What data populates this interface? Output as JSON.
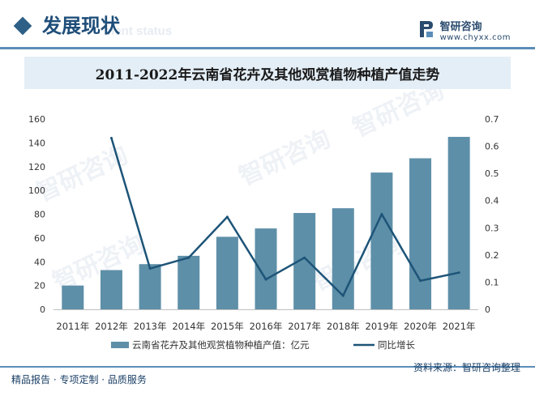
{
  "header": {
    "section_title": "发展现状",
    "section_sub": "ment status",
    "brand_name": "智研咨询",
    "brand_url": "www.chyxx.com"
  },
  "watermark_text": "智研咨询",
  "chart_title": "2011-2022年云南省花卉及其他观赏植物种植产值走势",
  "chart_data": {
    "type": "bar",
    "title": "2011-2022年云南省花卉及其他观赏植物种植产值走势",
    "categories": [
      "2011年",
      "2012年",
      "2013年",
      "2014年",
      "2015年",
      "2016年",
      "2017年",
      "2018年",
      "2019年",
      "2020年",
      "2021年"
    ],
    "series": [
      {
        "name": "云南省花卉及其他观赏植物种植产值：亿元",
        "type": "bar",
        "axis": "left",
        "color": "#5e8fa8",
        "values": [
          20,
          33,
          38,
          45,
          61,
          68,
          81,
          85,
          115,
          127,
          145
        ]
      },
      {
        "name": "同比增长",
        "type": "line",
        "axis": "right",
        "color": "#1d5478",
        "values": [
          null,
          0.63,
          0.15,
          0.19,
          0.34,
          0.11,
          0.19,
          0.05,
          0.35,
          0.105,
          0.135
        ]
      }
    ],
    "ylim_left": [
      0,
      160
    ],
    "yticks_left": [
      0,
      20,
      40,
      60,
      80,
      100,
      120,
      140,
      160
    ],
    "ylim_right": [
      0,
      0.7
    ],
    "yticks_right": [
      0,
      0.1,
      0.2,
      0.3,
      0.4,
      0.5,
      0.6,
      0.7
    ],
    "grid": false,
    "legend_position": "bottom"
  },
  "footer": {
    "left": "精品报告 · 专项定制 · 品质服务",
    "right": "资料来源：智研咨询整理"
  }
}
